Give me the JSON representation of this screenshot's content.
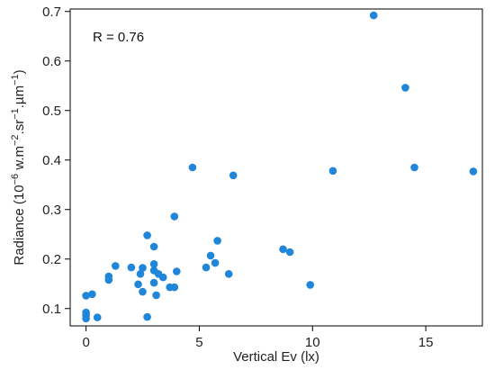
{
  "chart_data": {
    "type": "scatter",
    "xlabel": "Vertical Ev (lx)",
    "ylabel_parts": {
      "prefix": "Radiance (10",
      "exp1": "−6",
      "mid1": " w.m",
      "exp2": "−2",
      "mid2": ".sr",
      "exp3": "−1",
      "mid3": ".µm",
      "exp4": "−1",
      "suffix": ")"
    },
    "annotation": "R = 0.76",
    "xlim": [
      -0.7,
      17.5
    ],
    "ylim": [
      0.065,
      0.705
    ],
    "xticks": [
      0,
      5,
      10,
      15
    ],
    "xtick_labels": [
      "0",
      "5",
      "10",
      "15"
    ],
    "yticks": [
      0.1,
      0.2,
      0.3,
      0.4,
      0.5,
      0.6,
      0.7
    ],
    "ytick_labels": [
      "0.1",
      "0.2",
      "0.3",
      "0.4",
      "0.5",
      "0.6",
      "0.7"
    ],
    "grid": false,
    "point_color": "#1f86d9",
    "points": [
      [
        0.0,
        0.126
      ],
      [
        0.0,
        0.092
      ],
      [
        0.0,
        0.086
      ],
      [
        0.0,
        0.08
      ],
      [
        0.27,
        0.129
      ],
      [
        0.5,
        0.082
      ],
      [
        1.0,
        0.158
      ],
      [
        1.0,
        0.165
      ],
      [
        1.3,
        0.186
      ],
      [
        2.0,
        0.183
      ],
      [
        2.3,
        0.149
      ],
      [
        2.4,
        0.17
      ],
      [
        2.5,
        0.134
      ],
      [
        2.5,
        0.182
      ],
      [
        2.7,
        0.248
      ],
      [
        2.7,
        0.083
      ],
      [
        3.0,
        0.19
      ],
      [
        3.0,
        0.225
      ],
      [
        3.0,
        0.177
      ],
      [
        3.0,
        0.152
      ],
      [
        3.1,
        0.127
      ],
      [
        3.2,
        0.17
      ],
      [
        3.4,
        0.163
      ],
      [
        3.7,
        0.143
      ],
      [
        3.9,
        0.143
      ],
      [
        3.9,
        0.286
      ],
      [
        4.0,
        0.175
      ],
      [
        4.7,
        0.385
      ],
      [
        5.3,
        0.183
      ],
      [
        5.5,
        0.207
      ],
      [
        5.7,
        0.192
      ],
      [
        5.8,
        0.237
      ],
      [
        6.3,
        0.17
      ],
      [
        6.5,
        0.369
      ],
      [
        8.7,
        0.22
      ],
      [
        9.0,
        0.214
      ],
      [
        9.9,
        0.148
      ],
      [
        10.9,
        0.378
      ],
      [
        12.7,
        0.692
      ],
      [
        14.1,
        0.546
      ],
      [
        14.5,
        0.385
      ],
      [
        17.1,
        0.377
      ]
    ]
  }
}
